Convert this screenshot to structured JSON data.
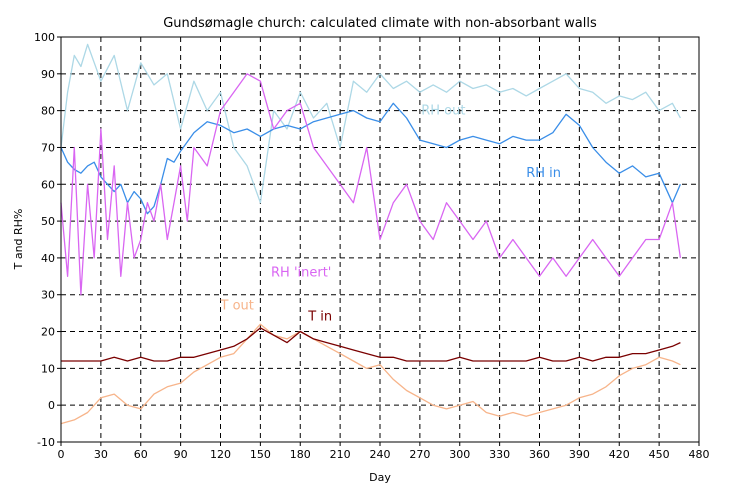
{
  "chart_data": {
    "type": "line",
    "title": "Gundsømagle church: calculated climate with non-absorbant walls",
    "xlabel": "Day",
    "ylabel": "T and RH%",
    "xlim": [
      0,
      480
    ],
    "ylim": [
      -10,
      100
    ],
    "x_ticks": [
      0,
      30,
      60,
      90,
      120,
      150,
      180,
      210,
      240,
      270,
      300,
      330,
      360,
      390,
      420,
      450,
      480
    ],
    "y_ticks": [
      -10,
      0,
      10,
      20,
      30,
      40,
      50,
      60,
      70,
      80,
      90,
      100
    ],
    "grid": true,
    "series": [
      {
        "name": "RH out",
        "color": "#add8e6",
        "x": [
          0,
          5,
          10,
          15,
          20,
          30,
          40,
          50,
          60,
          70,
          80,
          90,
          100,
          110,
          120,
          130,
          140,
          150,
          160,
          170,
          180,
          190,
          200,
          210,
          220,
          230,
          240,
          250,
          260,
          270,
          280,
          290,
          300,
          310,
          320,
          330,
          340,
          350,
          360,
          370,
          380,
          390,
          400,
          410,
          420,
          430,
          440,
          450,
          460,
          466
        ],
        "values": [
          70,
          85,
          95,
          92,
          98,
          88,
          95,
          80,
          93,
          87,
          90,
          75,
          88,
          80,
          85,
          70,
          65,
          55,
          80,
          75,
          85,
          78,
          82,
          70,
          88,
          85,
          90,
          86,
          88,
          85,
          87,
          85,
          88,
          86,
          87,
          85,
          86,
          84,
          86,
          88,
          90,
          86,
          85,
          82,
          84,
          83,
          85,
          80,
          82,
          78
        ]
      },
      {
        "name": "RH in",
        "color": "#3a8ee8",
        "x": [
          0,
          5,
          10,
          15,
          20,
          25,
          30,
          35,
          40,
          45,
          50,
          55,
          60,
          65,
          70,
          75,
          80,
          85,
          90,
          100,
          110,
          120,
          130,
          140,
          150,
          160,
          170,
          180,
          190,
          200,
          210,
          220,
          230,
          240,
          250,
          260,
          270,
          280,
          290,
          300,
          310,
          320,
          330,
          340,
          350,
          360,
          370,
          380,
          390,
          400,
          410,
          420,
          430,
          440,
          450,
          460,
          466
        ],
        "values": [
          70,
          66,
          64,
          63,
          65,
          66,
          62,
          60,
          58,
          60,
          55,
          58,
          56,
          52,
          54,
          60,
          67,
          66,
          69,
          74,
          77,
          76,
          74,
          75,
          73,
          75,
          76,
          75,
          77,
          78,
          79,
          80,
          78,
          77,
          82,
          78,
          72,
          71,
          70,
          72,
          73,
          72,
          71,
          73,
          72,
          72,
          74,
          79,
          76,
          70,
          66,
          63,
          65,
          62,
          63,
          55,
          60
        ]
      },
      {
        "name": "RH 'inert'",
        "color": "#d966f2",
        "x": [
          0,
          5,
          10,
          15,
          20,
          25,
          30,
          35,
          40,
          45,
          50,
          55,
          60,
          65,
          70,
          75,
          80,
          85,
          90,
          95,
          100,
          110,
          120,
          130,
          140,
          150,
          160,
          170,
          180,
          190,
          200,
          210,
          220,
          230,
          240,
          250,
          260,
          270,
          280,
          290,
          300,
          310,
          320,
          330,
          340,
          350,
          360,
          370,
          380,
          390,
          400,
          410,
          420,
          430,
          440,
          450,
          460,
          466
        ],
        "values": [
          55,
          35,
          70,
          30,
          60,
          40,
          75,
          45,
          65,
          35,
          55,
          40,
          45,
          55,
          50,
          60,
          45,
          55,
          65,
          50,
          70,
          65,
          80,
          85,
          90,
          88,
          75,
          80,
          82,
          70,
          65,
          60,
          55,
          70,
          45,
          55,
          60,
          50,
          45,
          55,
          50,
          45,
          50,
          40,
          45,
          40,
          35,
          40,
          35,
          40,
          45,
          40,
          35,
          40,
          45,
          45,
          55,
          40
        ]
      },
      {
        "name": "T out",
        "color": "#f7b48a",
        "x": [
          0,
          10,
          20,
          30,
          40,
          50,
          60,
          70,
          80,
          90,
          100,
          110,
          120,
          130,
          140,
          150,
          160,
          170,
          180,
          190,
          200,
          210,
          220,
          230,
          240,
          250,
          260,
          270,
          280,
          290,
          300,
          310,
          320,
          330,
          340,
          350,
          360,
          370,
          380,
          390,
          400,
          410,
          420,
          430,
          440,
          450,
          460,
          466
        ],
        "values": [
          -5,
          -4,
          -2,
          2,
          3,
          0,
          -1,
          3,
          5,
          6,
          9,
          11,
          13,
          14,
          18,
          22,
          19,
          18,
          20,
          18,
          16,
          14,
          12,
          10,
          11,
          7,
          4,
          2,
          0,
          -1,
          0,
          1,
          -2,
          -3,
          -2,
          -3,
          -2,
          -1,
          0,
          2,
          3,
          5,
          8,
          10,
          11,
          13,
          12,
          11
        ]
      },
      {
        "name": "T in",
        "color": "#7a0000",
        "x": [
          0,
          10,
          20,
          30,
          40,
          50,
          60,
          70,
          80,
          90,
          100,
          110,
          120,
          130,
          140,
          150,
          160,
          170,
          180,
          190,
          200,
          210,
          220,
          230,
          240,
          250,
          260,
          270,
          280,
          290,
          300,
          310,
          320,
          330,
          340,
          350,
          360,
          370,
          380,
          390,
          400,
          410,
          420,
          430,
          440,
          450,
          460,
          466
        ],
        "values": [
          12,
          12,
          12,
          12,
          13,
          12,
          13,
          12,
          12,
          13,
          13,
          14,
          15,
          16,
          18,
          21,
          19,
          17,
          20,
          18,
          17,
          16,
          15,
          14,
          13,
          13,
          12,
          12,
          12,
          12,
          13,
          12,
          12,
          12,
          12,
          12,
          13,
          12,
          12,
          13,
          12,
          13,
          13,
          14,
          14,
          15,
          16,
          17
        ]
      }
    ],
    "labels": [
      {
        "text": "RH out",
        "series": "RH out",
        "x": 271,
        "y": 79
      },
      {
        "text": "RH in",
        "series": "RH in",
        "x": 350,
        "y": 62
      },
      {
        "text": "RH 'inert'",
        "series": "RH 'inert'",
        "x": 158,
        "y": 35
      },
      {
        "text": "T out",
        "series": "T out",
        "x": 120,
        "y": 26
      },
      {
        "text": "T in",
        "series": "T in",
        "x": 186,
        "y": 23
      }
    ]
  }
}
